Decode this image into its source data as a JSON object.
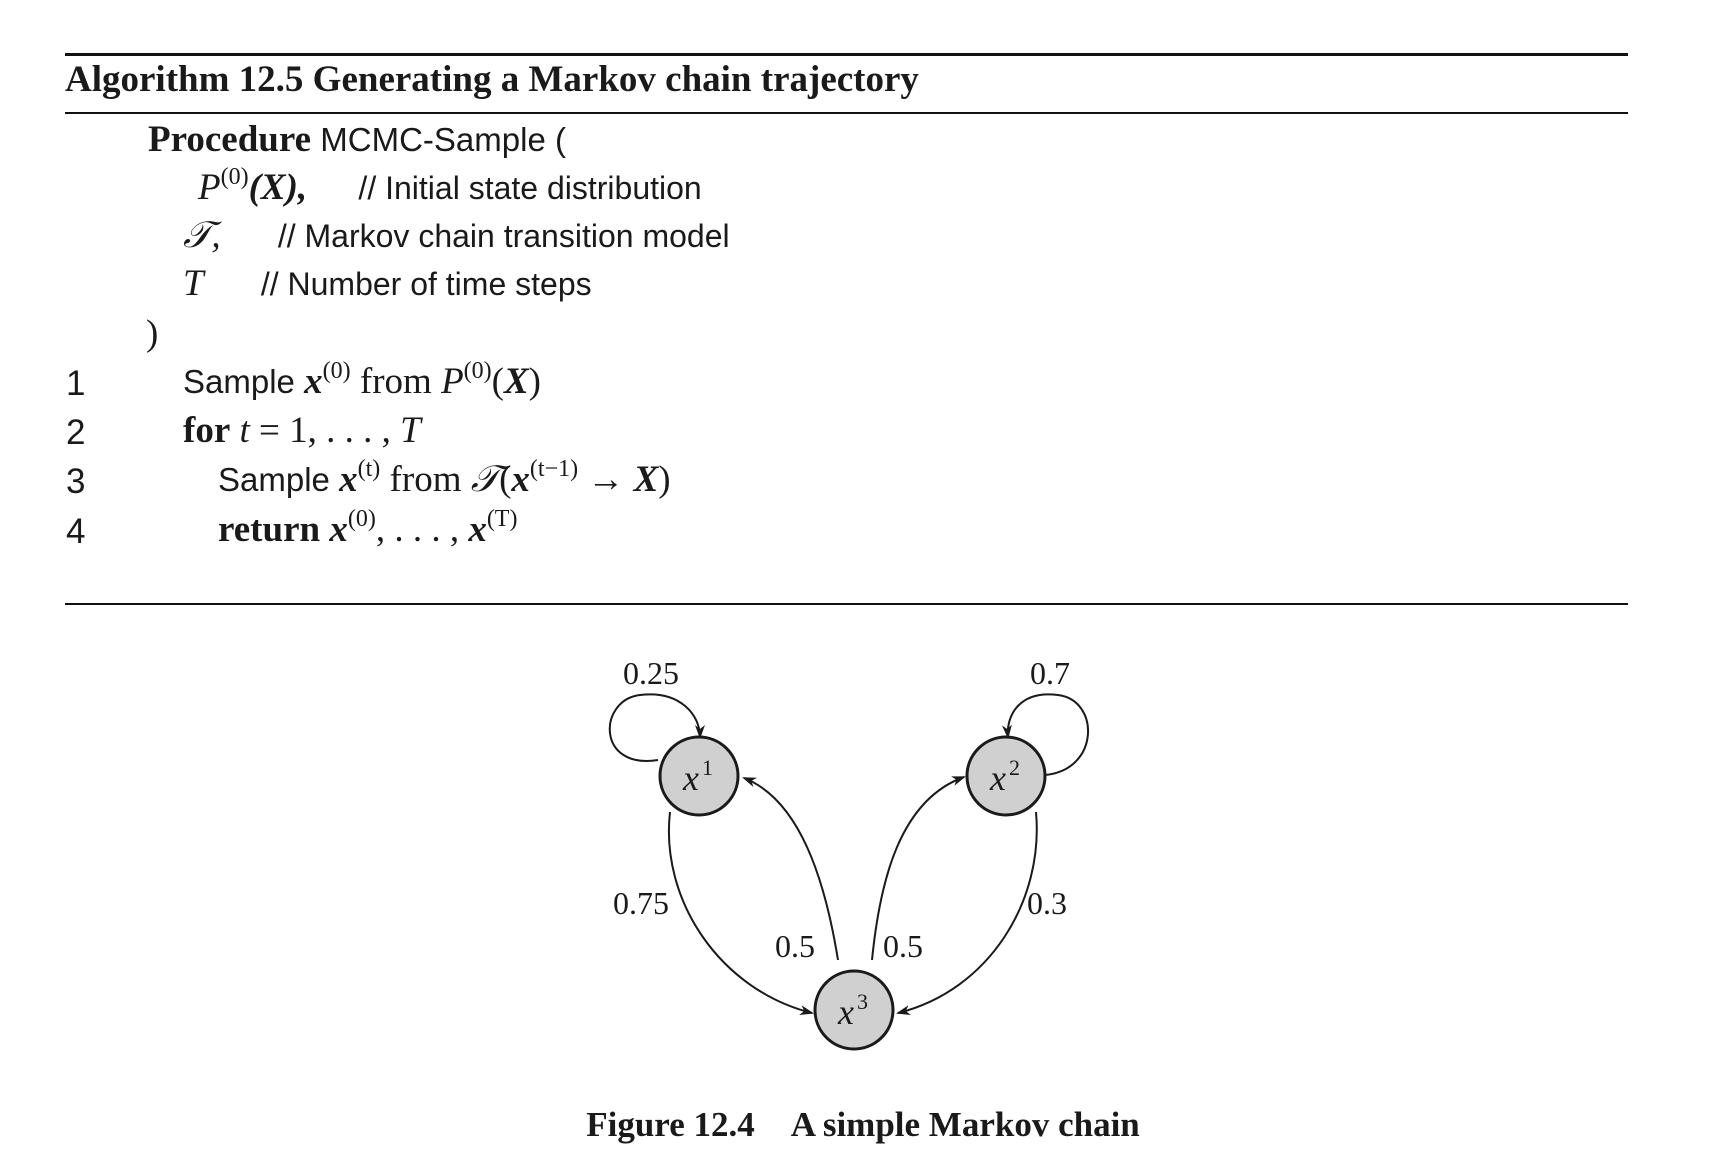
{
  "algorithm": {
    "title": "Algorithm 12.5 Generating a Markov chain trajectory",
    "procedure_keyword": "Procedure",
    "procedure_name": "MCMC-Sample (",
    "params": [
      {
        "symbol": "P",
        "sup": "(0)",
        "arg": "(X),",
        "comment": "// Initial state distribution"
      },
      {
        "symbol": "𝒯,",
        "comment": "// Markov chain transition model"
      },
      {
        "symbol": "T",
        "comment": "// Number of time steps"
      }
    ],
    "close_paren": ")",
    "steps": [
      {
        "num": "1"
      },
      {
        "num": "2"
      },
      {
        "num": "3"
      },
      {
        "num": "4"
      }
    ],
    "step_text": {
      "sample": "Sample",
      "from": "from",
      "for": "for",
      "return": "return",
      "x": "x",
      "X": "X",
      "P": "P",
      "T": "T",
      "t": "t",
      "sup0": "(0)",
      "supt": "(t)",
      "suptm1": "(t−1)",
      "supT": "(T)",
      "eq_range": " = 1, . . . , ",
      "ellipsis": ", . . . , ",
      "arrow": " → ",
      "transition": "𝒯"
    }
  },
  "figure": {
    "caption_label": "Figure 12.4",
    "caption_text": "A simple Markov chain",
    "nodes": [
      {
        "id": "x1",
        "base": "x",
        "sup": "1"
      },
      {
        "id": "x2",
        "base": "x",
        "sup": "2"
      },
      {
        "id": "x3",
        "base": "x",
        "sup": "3"
      }
    ],
    "edges": [
      {
        "from": "x1",
        "to": "x1",
        "label": "0.25"
      },
      {
        "from": "x2",
        "to": "x2",
        "label": "0.7"
      },
      {
        "from": "x1",
        "to": "x3",
        "label": "0.75"
      },
      {
        "from": "x3",
        "to": "x1",
        "label": "0.5"
      },
      {
        "from": "x3",
        "to": "x2",
        "label": "0.5"
      },
      {
        "from": "x2",
        "to": "x3",
        "label": "0.3"
      }
    ],
    "colors": {
      "node_fill": "#d0d0d0",
      "stroke": "#1a1a1a"
    }
  }
}
